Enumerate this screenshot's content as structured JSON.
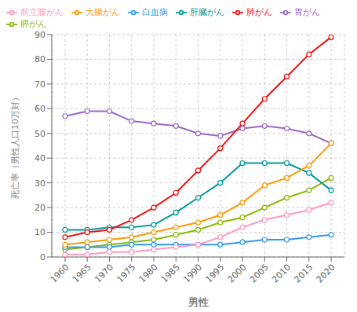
{
  "chart_data": {
    "type": "line",
    "xlabel": "男性",
    "ylabel": "死亡率（男性人口10万対）",
    "x": [
      1960,
      1965,
      1970,
      1975,
      1980,
      1985,
      1990,
      1995,
      2000,
      2005,
      2010,
      2015,
      2020
    ],
    "series": [
      {
        "name": "胃がん",
        "color": "#9966cc",
        "values": [
          57,
          59,
          59,
          55,
          54,
          53,
          50,
          49,
          52,
          53,
          52,
          50,
          46
        ]
      },
      {
        "name": "膵がん",
        "color": "#88bb00",
        "values": [
          3,
          4,
          5,
          6,
          7,
          9,
          11,
          14,
          16,
          20,
          24,
          27,
          32
        ]
      },
      {
        "name": "白血病",
        "color": "#3399ee",
        "values": [
          4,
          4,
          4,
          5,
          5,
          5,
          5,
          5,
          6,
          7,
          7,
          8,
          9
        ]
      },
      {
        "name": "肝臓がん",
        "color": "#009999",
        "values": [
          11,
          11,
          12,
          12,
          13,
          18,
          24,
          30,
          38,
          38,
          38,
          34,
          27
        ]
      },
      {
        "name": "肺がん",
        "color": "#ee1111",
        "values": [
          8,
          10,
          11,
          15,
          20,
          26,
          35,
          44,
          54,
          64,
          73,
          82,
          89
        ]
      },
      {
        "name": "前立腺がん",
        "color": "#ff99bb",
        "values": [
          1,
          1,
          2,
          2,
          3,
          4,
          5,
          8,
          12,
          15,
          17,
          19,
          22
        ]
      },
      {
        "name": "大腸がん",
        "color": "#ff9900",
        "values": [
          5,
          6,
          7,
          8,
          10,
          12,
          14,
          17,
          22,
          29,
          32,
          37,
          46
        ]
      }
    ],
    "marker": "circle",
    "xlim": [
      1957,
      2023
    ],
    "xticks": [
      1960,
      1965,
      1970,
      1975,
      1980,
      1985,
      1990,
      1995,
      2000,
      2005,
      2010,
      2015,
      2020
    ],
    "ylim": [
      0,
      90
    ],
    "yticks": [
      0,
      10,
      20,
      30,
      40,
      50,
      60,
      70,
      80,
      90
    ],
    "grid": true,
    "legend": "upper left"
  }
}
